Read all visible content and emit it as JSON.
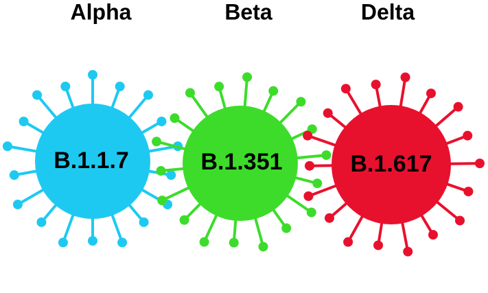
{
  "variants": [
    {
      "name": "Alpha",
      "lineage": "B.1.1.7"
    },
    {
      "name": "Beta",
      "lineage": "B.1.351"
    },
    {
      "name": "Delta",
      "lineage": "B.1.617"
    }
  ]
}
